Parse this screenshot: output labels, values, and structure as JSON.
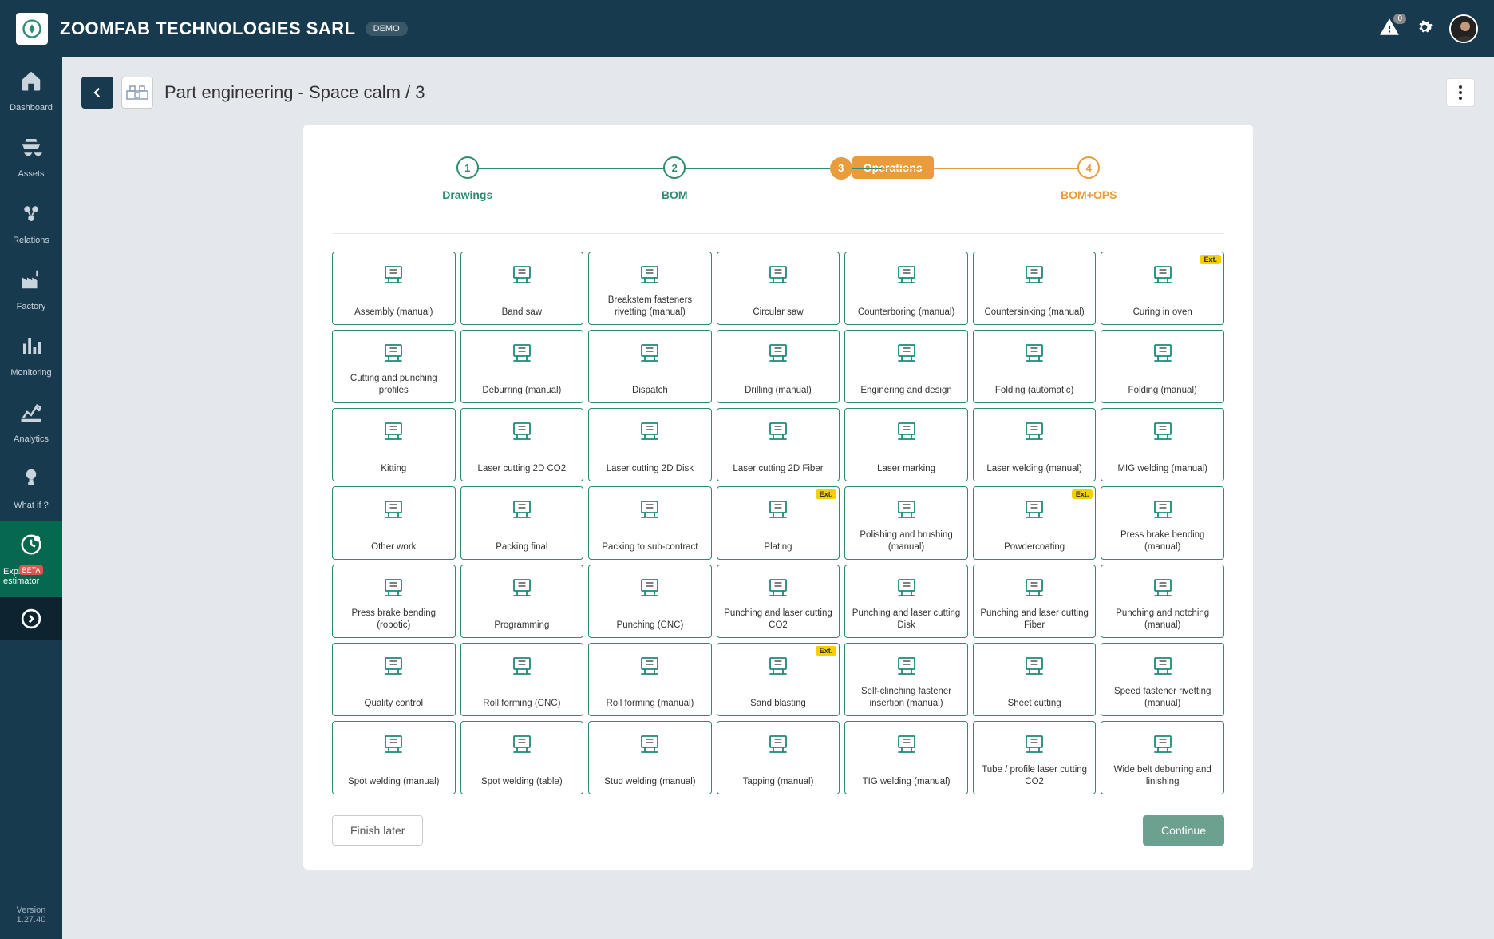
{
  "topbar": {
    "brand": "ZOOMFAB TECHNOLOGIES SARL",
    "demo_badge": "DEMO",
    "notification_count": "0"
  },
  "sidebar": {
    "items": [
      {
        "label": "Dashboard",
        "icon": "home"
      },
      {
        "label": "Assets",
        "icon": "assets"
      },
      {
        "label": "Relations",
        "icon": "relations"
      },
      {
        "label": "Factory",
        "icon": "factory"
      },
      {
        "label": "Monitoring",
        "icon": "monitoring"
      },
      {
        "label": "Analytics",
        "icon": "analytics"
      },
      {
        "label": "What if ?",
        "icon": "whatif"
      },
      {
        "label": "Express estimator",
        "icon": "express",
        "active": true,
        "beta": "BETA"
      }
    ],
    "version_label": "Version",
    "version_number": "1.27.40"
  },
  "page": {
    "title": "Part engineering - Space calm / 3"
  },
  "stepper": {
    "steps": [
      {
        "num": "1",
        "label": "Drawings",
        "state": "done"
      },
      {
        "num": "2",
        "label": "BOM",
        "state": "done"
      },
      {
        "num": "3",
        "label": "Operations",
        "state": "current"
      },
      {
        "num": "4",
        "label": "BOM+OPS",
        "state": "upcoming"
      }
    ]
  },
  "operations": [
    {
      "label": "Assembly (manual)"
    },
    {
      "label": "Band saw"
    },
    {
      "label": "Breakstem fasteners rivetting (manual)"
    },
    {
      "label": "Circular saw"
    },
    {
      "label": "Counterboring (manual)"
    },
    {
      "label": "Countersinking (manual)"
    },
    {
      "label": "Curing in oven",
      "ext": true
    },
    {
      "label": "Cutting and punching profiles"
    },
    {
      "label": "Deburring (manual)"
    },
    {
      "label": "Dispatch"
    },
    {
      "label": "Drilling (manual)"
    },
    {
      "label": "Enginering and design"
    },
    {
      "label": "Folding (automatic)"
    },
    {
      "label": "Folding (manual)"
    },
    {
      "label": "Kitting"
    },
    {
      "label": "Laser cutting 2D CO2"
    },
    {
      "label": "Laser cutting 2D Disk"
    },
    {
      "label": "Laser cutting 2D Fiber"
    },
    {
      "label": "Laser marking"
    },
    {
      "label": "Laser welding (manual)"
    },
    {
      "label": "MIG welding (manual)"
    },
    {
      "label": "Other work"
    },
    {
      "label": "Packing final"
    },
    {
      "label": "Packing to sub-contract"
    },
    {
      "label": "Plating",
      "ext": true
    },
    {
      "label": "Polishing and brushing (manual)"
    },
    {
      "label": "Powdercoating",
      "ext": true
    },
    {
      "label": "Press brake bending (manual)"
    },
    {
      "label": "Press brake bending (robotic)"
    },
    {
      "label": "Programming"
    },
    {
      "label": "Punching (CNC)"
    },
    {
      "label": "Punching and laser cutting CO2"
    },
    {
      "label": "Punching and laser cutting Disk"
    },
    {
      "label": "Punching and laser cutting Fiber"
    },
    {
      "label": "Punching and notching (manual)"
    },
    {
      "label": "Quality control"
    },
    {
      "label": "Roll forming (CNC)"
    },
    {
      "label": "Roll forming (manual)"
    },
    {
      "label": "Sand blasting",
      "ext": true
    },
    {
      "label": "Self-clinching fastener insertion (manual)"
    },
    {
      "label": "Sheet cutting"
    },
    {
      "label": "Speed fastener rivetting (manual)"
    },
    {
      "label": "Spot welding (manual)"
    },
    {
      "label": "Spot welding (table)"
    },
    {
      "label": "Stud welding (manual)"
    },
    {
      "label": "Tapping (manual)"
    },
    {
      "label": "TIG welding (manual)"
    },
    {
      "label": "Tube / profile laser cutting CO2"
    },
    {
      "label": "Wide belt deburring and linishing"
    }
  ],
  "footer": {
    "finish_later": "Finish later",
    "continue": "Continue"
  },
  "ext_badge_label": "Ext.",
  "colors": {
    "topbar_bg": "#183a4e",
    "sidebar_bg": "#183a4e",
    "active_nav_bg": "#05684f",
    "tile_border": "#2e8b6f",
    "stepper_done": "#2e8b6f",
    "stepper_current": "#e89c3c",
    "primary_button": "#6da18f",
    "ext_badge": "#f5d000",
    "beta_badge": "#d9534f",
    "body_bg": "#e4e8ed"
  }
}
